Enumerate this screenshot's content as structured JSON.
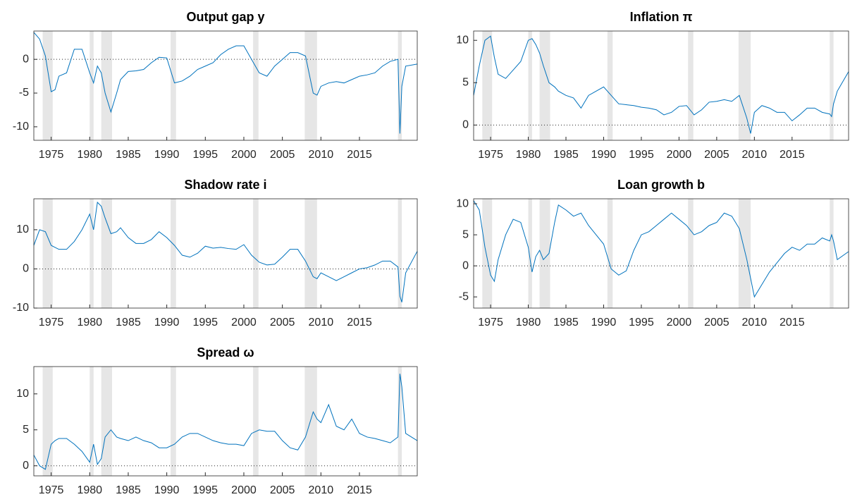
{
  "chart_data": [
    {
      "type": "line",
      "title": "Output gap y",
      "color": "#0072bd",
      "x": [
        1972.75,
        1973.5,
        1974.25,
        1975,
        1975.5,
        1976,
        1977,
        1978,
        1979,
        1980,
        1980.5,
        1981,
        1981.5,
        1982,
        1982.75,
        1983.5,
        1984,
        1985,
        1986,
        1987,
        1988,
        1989,
        1990,
        1991,
        1992,
        1993,
        1994,
        1995,
        1996,
        1997,
        1998,
        1999,
        2000,
        2001,
        2002,
        2003,
        2004,
        2005,
        2006,
        2007,
        2008,
        2009,
        2009.5,
        2010,
        2011,
        2012,
        2013,
        2014,
        2015,
        2016,
        2017,
        2018,
        2019,
        2020,
        2020.25,
        2020.5,
        2021,
        2022.5
      ],
      "values": [
        4,
        3,
        0.5,
        -4.8,
        -4.5,
        -2.5,
        -2,
        1.5,
        1.5,
        -2,
        -3.5,
        -1,
        -2,
        -5,
        -7.8,
        -5,
        -3,
        -1.8,
        -1.7,
        -1.5,
        -0.5,
        0.3,
        0.2,
        -3.5,
        -3.2,
        -2.5,
        -1.5,
        -1,
        -0.5,
        0.7,
        1.5,
        2,
        2,
        0,
        -2,
        -2.5,
        -1,
        0,
        1,
        1,
        0.5,
        -5,
        -5.3,
        -4,
        -3.5,
        -3.3,
        -3.5,
        -3,
        -2.5,
        -2.3,
        -2,
        -1,
        -0.3,
        0,
        -11,
        -4,
        -1,
        -0.7
      ],
      "xlim": [
        1972.75,
        2022.5
      ],
      "ylim": [
        -12,
        4.2
      ],
      "xticks": [
        1975,
        1980,
        1985,
        1990,
        1995,
        2000,
        2005,
        2010,
        2015
      ],
      "yticks": [
        -10,
        -5,
        0
      ],
      "hline": 0,
      "shaded": [
        [
          1973.9,
          1975.2
        ],
        [
          1980,
          1980.5
        ],
        [
          1981.5,
          1982.9
        ],
        [
          1990.5,
          1991.2
        ],
        [
          2001.2,
          2001.9
        ],
        [
          2007.9,
          2009.5
        ],
        [
          2020,
          2020.5
        ]
      ]
    },
    {
      "type": "line",
      "title": "Inflation π",
      "color": "#0072bd",
      "x": [
        1972.75,
        1973.5,
        1974.25,
        1975,
        1975.5,
        1976,
        1977,
        1978,
        1979,
        1980,
        1980.5,
        1981,
        1981.5,
        1982,
        1982.75,
        1983.5,
        1984,
        1985,
        1986,
        1987,
        1988,
        1989,
        1990,
        1991,
        1992,
        1993,
        1994,
        1995,
        1996,
        1997,
        1998,
        1999,
        2000,
        2001,
        2002,
        2003,
        2004,
        2005,
        2006,
        2007,
        2008,
        2009,
        2009.5,
        2010,
        2011,
        2012,
        2013,
        2014,
        2015,
        2016,
        2017,
        2018,
        2019,
        2020,
        2020.25,
        2020.5,
        2021,
        2022.5
      ],
      "values": [
        3.5,
        7,
        10,
        10.5,
        8,
        6,
        5.5,
        6.5,
        7.5,
        10,
        10.2,
        9.5,
        8.5,
        7,
        5,
        4.5,
        4,
        3.5,
        3.2,
        2,
        3.5,
        4,
        4.5,
        3.5,
        2.5,
        2.4,
        2.3,
        2.1,
        2,
        1.8,
        1.2,
        1.5,
        2.2,
        2.3,
        1.2,
        1.8,
        2.7,
        2.8,
        3,
        2.8,
        3.5,
        0.8,
        -1,
        1.5,
        2.3,
        2,
        1.5,
        1.5,
        0.5,
        1.2,
        2,
        2,
        1.5,
        1.3,
        1,
        2.5,
        4,
        6.3
      ],
      "xlim": [
        1972.75,
        2022.5
      ],
      "ylim": [
        -1.8,
        11.1
      ],
      "xticks": [
        1975,
        1980,
        1985,
        1990,
        1995,
        2000,
        2005,
        2010,
        2015
      ],
      "yticks": [
        0,
        5,
        10
      ],
      "hline": 0,
      "shaded": [
        [
          1973.9,
          1975.2
        ],
        [
          1980,
          1980.5
        ],
        [
          1981.5,
          1982.9
        ],
        [
          1990.5,
          1991.2
        ],
        [
          2001.2,
          2001.9
        ],
        [
          2007.9,
          2009.5
        ],
        [
          2020,
          2020.5
        ]
      ]
    },
    {
      "type": "line",
      "title": "Shadow rate i",
      "color": "#0072bd",
      "x": [
        1972.75,
        1973.5,
        1974.25,
        1975,
        1975.5,
        1976,
        1977,
        1978,
        1979,
        1980,
        1980.5,
        1981,
        1981.5,
        1982,
        1982.75,
        1983.5,
        1984,
        1985,
        1986,
        1987,
        1988,
        1989,
        1990,
        1991,
        1992,
        1993,
        1994,
        1995,
        1996,
        1997,
        1998,
        1999,
        2000,
        2001,
        2002,
        2003,
        2004,
        2005,
        2006,
        2007,
        2008,
        2009,
        2009.5,
        2010,
        2011,
        2012,
        2013,
        2014,
        2015,
        2016,
        2017,
        2018,
        2019,
        2020,
        2020.25,
        2020.5,
        2021,
        2022.5
      ],
      "values": [
        6,
        10,
        9.5,
        6,
        5.5,
        5,
        5,
        7,
        10,
        14,
        10,
        17,
        16,
        13,
        9,
        9.5,
        10.5,
        8,
        6.5,
        6.5,
        7.5,
        9.5,
        8,
        6,
        3.5,
        3,
        4,
        5.8,
        5.3,
        5.5,
        5.2,
        5,
        6.2,
        3.5,
        1.7,
        1,
        1.2,
        3,
        5,
        5,
        2,
        -2,
        -2.5,
        -1,
        -2,
        -3,
        -2,
        -1,
        0,
        0.3,
        1,
        2,
        2,
        0.5,
        -7,
        -8.5,
        -1,
        4.5
      ],
      "xlim": [
        1972.75,
        2022.5
      ],
      "ylim": [
        -10,
        17.9
      ],
      "xticks": [
        1975,
        1980,
        1985,
        1990,
        1995,
        2000,
        2005,
        2010,
        2015
      ],
      "yticks": [
        -10,
        0,
        10
      ],
      "hline": 0,
      "shaded": [
        [
          1973.9,
          1975.2
        ],
        [
          1980,
          1980.5
        ],
        [
          1981.5,
          1982.9
        ],
        [
          1990.5,
          1991.2
        ],
        [
          2001.2,
          2001.9
        ],
        [
          2007.9,
          2009.5
        ],
        [
          2020,
          2020.5
        ]
      ]
    },
    {
      "type": "line",
      "title": "Loan growth b",
      "color": "#0072bd",
      "x": [
        1972.75,
        1973.5,
        1974.25,
        1975,
        1975.5,
        1976,
        1977,
        1978,
        1979,
        1980,
        1980.5,
        1981,
        1981.5,
        1982,
        1982.75,
        1983.5,
        1984,
        1985,
        1986,
        1987,
        1988,
        1989,
        1990,
        1991,
        1992,
        1993,
        1994,
        1995,
        1996,
        1997,
        1998,
        1999,
        2000,
        2001,
        2002,
        2003,
        2004,
        2005,
        2006,
        2007,
        2008,
        2009,
        2009.5,
        2010,
        2011,
        2012,
        2013,
        2014,
        2015,
        2016,
        2017,
        2018,
        2019,
        2020,
        2020.25,
        2020.5,
        2021,
        2022.5
      ],
      "values": [
        10.5,
        9,
        3,
        -1.5,
        -2.5,
        1,
        5,
        7.5,
        7,
        3,
        -1,
        1.5,
        2.5,
        1,
        2,
        7,
        9.8,
        9,
        8,
        8.5,
        6.5,
        5,
        3.5,
        -0.5,
        -1.5,
        -0.8,
        2.5,
        5,
        5.5,
        6.5,
        7.5,
        8.5,
        7.5,
        6.5,
        5,
        5.5,
        6.5,
        7,
        8.5,
        8,
        6,
        1,
        -2,
        -5,
        -3,
        -1,
        0.5,
        2,
        3,
        2.5,
        3.5,
        3.5,
        4.5,
        4,
        5,
        4,
        1,
        2.3
      ],
      "xlim": [
        1972.75,
        2022.5
      ],
      "ylim": [
        -6.8,
        10.8
      ],
      "xticks": [
        1975,
        1980,
        1985,
        1990,
        1995,
        2000,
        2005,
        2010,
        2015
      ],
      "yticks": [
        -5,
        0,
        5,
        10
      ],
      "hline": 0,
      "shaded": [
        [
          1973.9,
          1975.2
        ],
        [
          1980,
          1980.5
        ],
        [
          1981.5,
          1982.9
        ],
        [
          1990.5,
          1991.2
        ],
        [
          2001.2,
          2001.9
        ],
        [
          2007.9,
          2009.5
        ],
        [
          2020,
          2020.5
        ]
      ]
    },
    {
      "type": "line",
      "title": "Spread ω",
      "color": "#0072bd",
      "x": [
        1972.75,
        1973.5,
        1974.25,
        1975,
        1975.5,
        1976,
        1977,
        1978,
        1979,
        1980,
        1980.5,
        1981,
        1981.5,
        1982,
        1982.75,
        1983.5,
        1984,
        1985,
        1986,
        1987,
        1988,
        1989,
        1990,
        1991,
        1992,
        1993,
        1994,
        1995,
        1996,
        1997,
        1998,
        1999,
        2000,
        2001,
        2002,
        2003,
        2004,
        2005,
        2006,
        2007,
        2008,
        2009,
        2009.5,
        2010,
        2011,
        2012,
        2013,
        2014,
        2015,
        2016,
        2017,
        2018,
        2019,
        2020,
        2020.25,
        2020.5,
        2021,
        2022.5
      ],
      "values": [
        1.5,
        0,
        -0.5,
        3,
        3.5,
        3.8,
        3.8,
        3,
        2,
        0.5,
        3,
        0.2,
        1,
        4,
        5,
        4,
        3.8,
        3.5,
        4,
        3.5,
        3.2,
        2.5,
        2.5,
        3,
        4,
        4.5,
        4.5,
        4,
        3.5,
        3.2,
        3,
        3,
        2.8,
        4.5,
        5,
        4.8,
        4.8,
        3.5,
        2.5,
        2.2,
        4,
        7.5,
        6.5,
        6,
        8.5,
        5.5,
        5,
        6.5,
        4.5,
        4,
        3.8,
        3.5,
        3.2,
        4,
        12.8,
        11,
        4.5,
        3.5
      ],
      "xlim": [
        1972.75,
        2022.5
      ],
      "ylim": [
        -1.4,
        13.8
      ],
      "xticks": [
        1975,
        1980,
        1985,
        1990,
        1995,
        2000,
        2005,
        2010,
        2015
      ],
      "yticks": [
        0,
        5,
        10
      ],
      "hline": 0,
      "shaded": [
        [
          1973.9,
          1975.2
        ],
        [
          1980,
          1980.5
        ],
        [
          1981.5,
          1982.9
        ],
        [
          1990.5,
          1991.2
        ],
        [
          2001.2,
          2001.9
        ],
        [
          2007.9,
          2009.5
        ],
        [
          2020,
          2020.5
        ]
      ]
    }
  ]
}
